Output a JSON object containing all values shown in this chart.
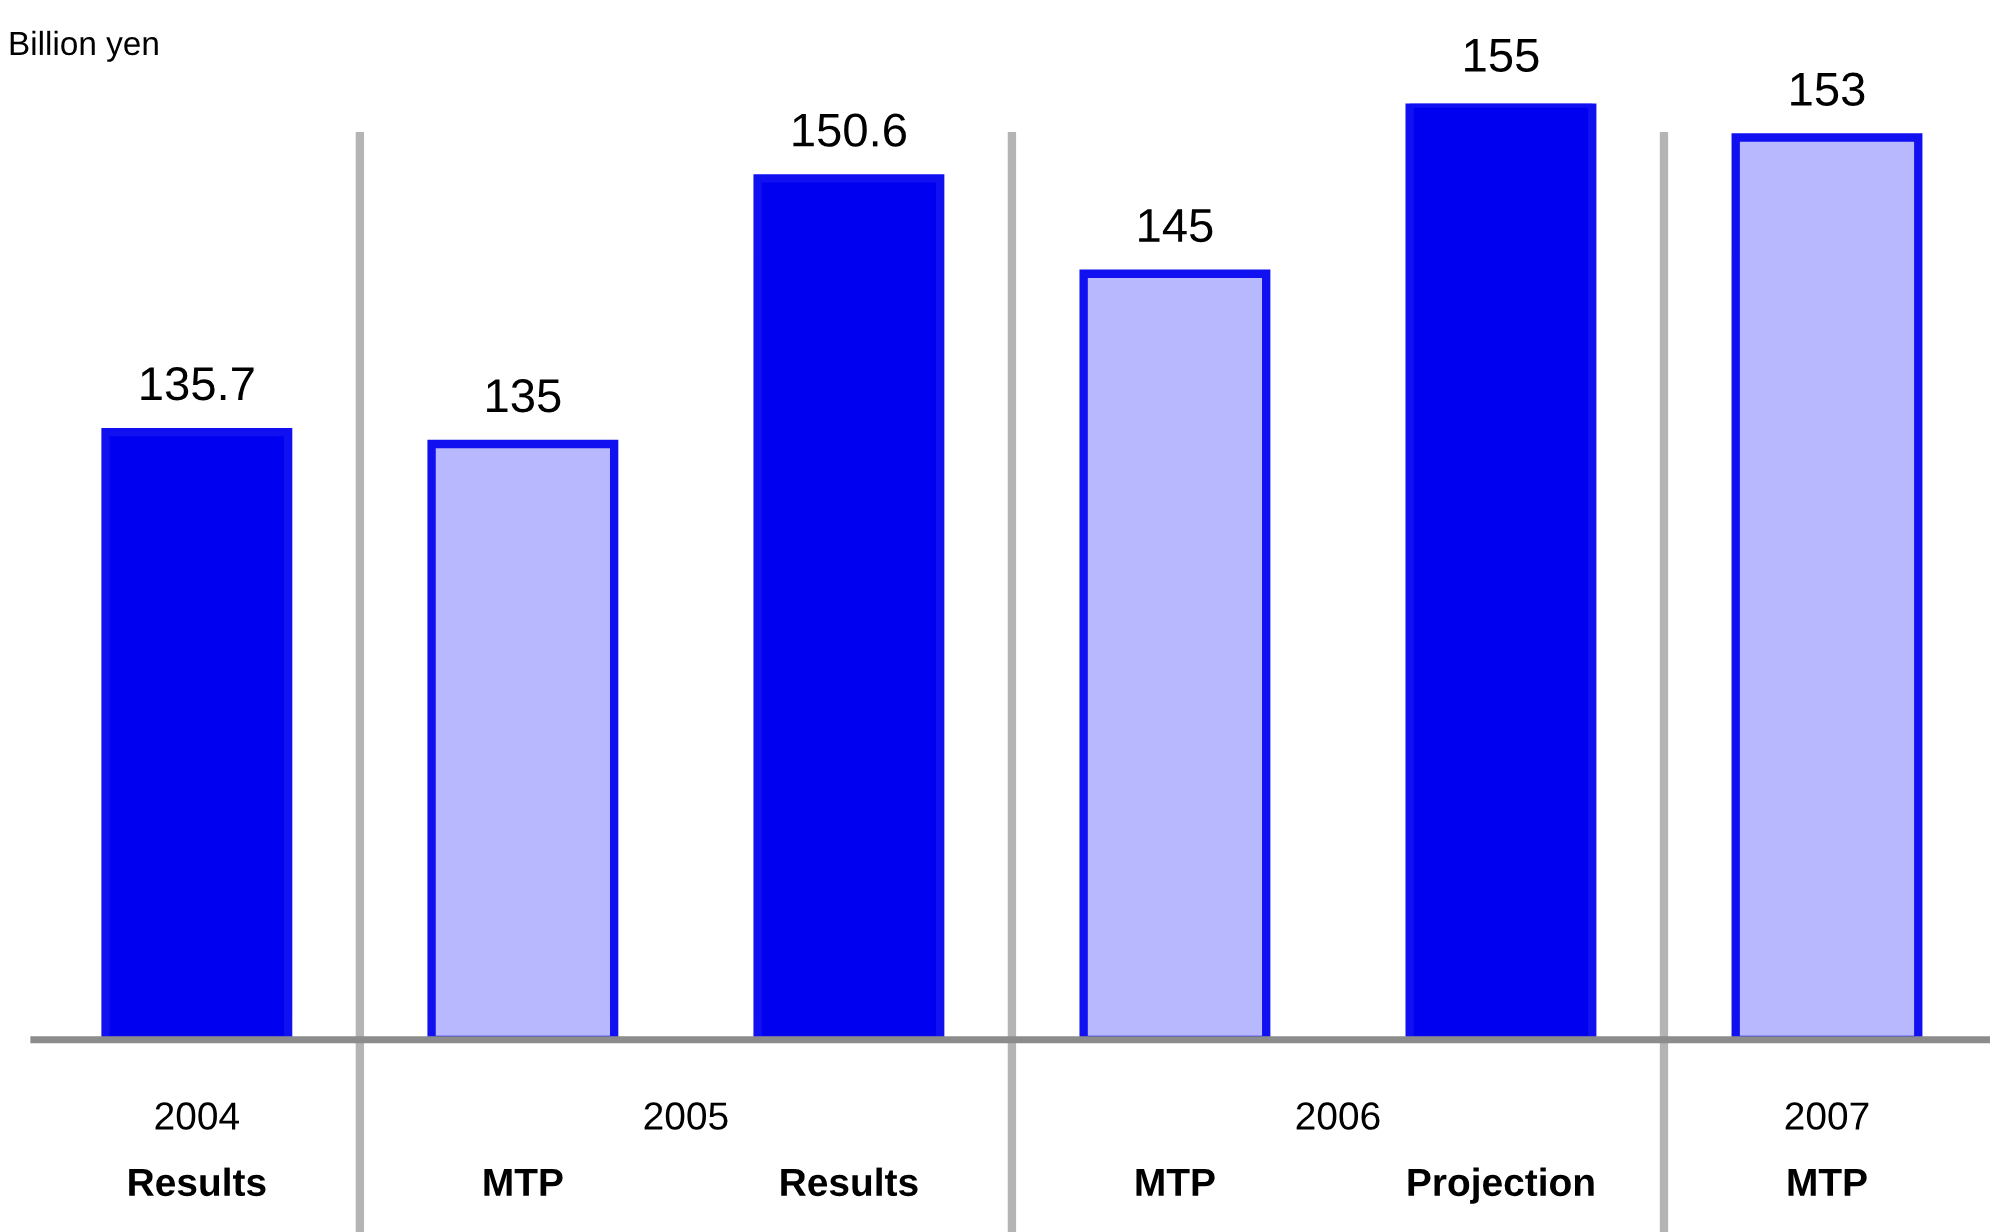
{
  "chart_data": {
    "type": "bar",
    "categories": [
      "Results",
      "MTP",
      "Results",
      "MTP",
      "Projection",
      "MTP"
    ],
    "values": [
      135.7,
      135,
      150.6,
      145,
      155,
      153
    ],
    "colors": [
      "#0000f0",
      "#b8b8ff",
      "#0000f0",
      "#b8b8ff",
      "#0000f0",
      "#b8b8ff"
    ],
    "data_labels": true,
    "ylim": [
      100,
      155
    ],
    "tick_labels": "x",
    "grid": false,
    "annotations": [
      "Billion yen",
      "2004",
      "2005",
      "2006",
      "2007"
    ]
  }
}
